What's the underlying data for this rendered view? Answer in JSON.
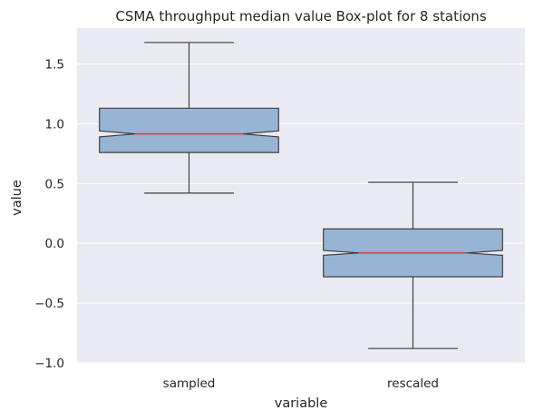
{
  "chart_data": {
    "type": "box",
    "title": "CSMA throughput median value Box-plot for 8 stations",
    "xlabel": "variable",
    "ylabel": "value",
    "ylim": [
      -1.0,
      1.8
    ],
    "yticks": [
      -1.0,
      -0.5,
      0.0,
      0.5,
      1.0,
      1.5
    ],
    "ytick_labels": [
      "−1.0",
      "−0.5",
      "0.0",
      "0.5",
      "1.0",
      "1.5"
    ],
    "grid": true,
    "notched": true,
    "categories": [
      "sampled",
      "rescaled"
    ],
    "boxes": [
      {
        "category": "sampled",
        "whisker_low": 0.42,
        "q1": 0.76,
        "median": 0.915,
        "q3": 1.13,
        "whisker_high": 1.68,
        "notch_low": 0.89,
        "notch_high": 0.94
      },
      {
        "category": "rescaled",
        "whisker_low": -0.88,
        "q1": -0.28,
        "median": -0.08,
        "q3": 0.12,
        "whisker_high": 0.51,
        "notch_low": -0.1,
        "notch_high": -0.06
      }
    ]
  },
  "colors": {
    "background": "#eaeaf2",
    "grid": "#ffffff",
    "box_fill": "#98b4d4",
    "edge": "#3f3f3f",
    "median": "#c44e52"
  }
}
